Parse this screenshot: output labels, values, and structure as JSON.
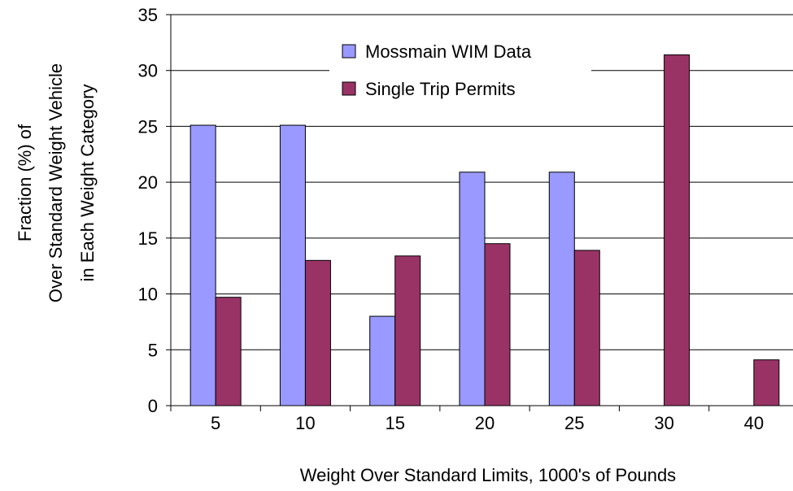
{
  "chart_data": {
    "type": "bar",
    "title": "",
    "xlabel": "Weight Over Standard Limits, 1000's of Pounds",
    "ylabel_lines": [
      "Fraction (%) of",
      "Over Standard Weight Vehicle",
      "in Each Weight Category"
    ],
    "ylim": [
      0,
      35
    ],
    "yticks": [
      "0",
      "5",
      "10",
      "15",
      "20",
      "25",
      "30",
      "35"
    ],
    "categories": [
      "5",
      "10",
      "15",
      "20",
      "25",
      "30",
      "40"
    ],
    "series": [
      {
        "name": "Mossmain WIM Data",
        "color": "#9999ff",
        "values": [
          25.1,
          25.1,
          8.0,
          20.9,
          20.9,
          0,
          0
        ]
      },
      {
        "name": "Single Trip Permits",
        "color": "#993366",
        "values": [
          9.7,
          13.0,
          13.4,
          14.5,
          13.9,
          31.4,
          4.1
        ]
      }
    ],
    "grid": "horizontal",
    "legend_position": "top-center"
  }
}
